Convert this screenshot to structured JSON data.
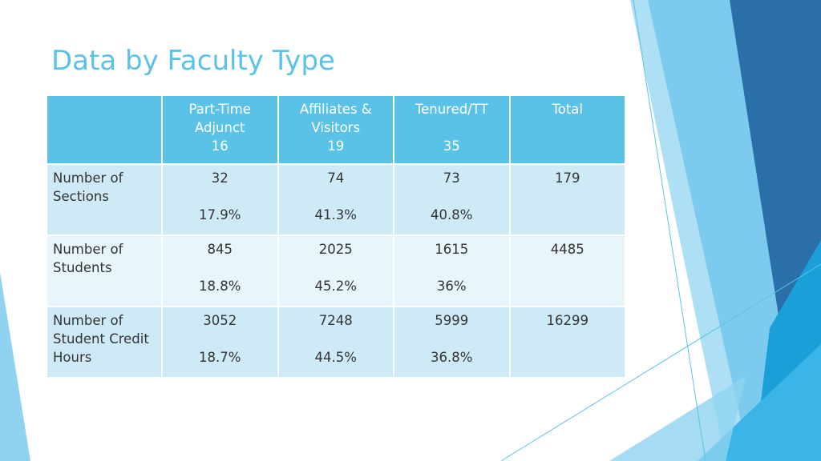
{
  "slide": {
    "title": "Data by Faculty Type"
  },
  "table": {
    "columns": [
      {
        "label_lines": [
          "Part-Time",
          "Adjunct"
        ],
        "count": "16"
      },
      {
        "label_lines": [
          "Affiliates &",
          "Visitors"
        ],
        "count": "19"
      },
      {
        "label_lines": [
          "Tenured/TT"
        ],
        "count": "35"
      },
      {
        "label_lines": [
          "Total"
        ],
        "count": ""
      }
    ],
    "rows": [
      {
        "label_lines": [
          "Number of",
          "Sections"
        ],
        "cells": [
          {
            "value": "32",
            "percent": "17.9%"
          },
          {
            "value": "74",
            "percent": "41.3%"
          },
          {
            "value": "73",
            "percent": "40.8%"
          },
          {
            "value": "179",
            "percent": ""
          }
        ]
      },
      {
        "label_lines": [
          "Number of",
          "Students"
        ],
        "cells": [
          {
            "value": "845",
            "percent": "18.8%"
          },
          {
            "value": "2025",
            "percent": "45.2%"
          },
          {
            "value": "1615",
            "percent": "36%"
          },
          {
            "value": "4485",
            "percent": ""
          }
        ]
      },
      {
        "label_lines": [
          "Number of",
          "Student Credit",
          "Hours"
        ],
        "cells": [
          {
            "value": "3052",
            "percent": "18.7%"
          },
          {
            "value": "7248",
            "percent": "44.5%"
          },
          {
            "value": "5999",
            "percent": "36.8%"
          },
          {
            "value": "16299",
            "percent": ""
          }
        ]
      }
    ]
  },
  "colors": {
    "accent": "#5bc2e7",
    "header_bg": "#5bc2e7",
    "row_dark": "#cfeaf7",
    "row_light": "#e8f5fb",
    "deco_dark": "#2a6fa8"
  }
}
